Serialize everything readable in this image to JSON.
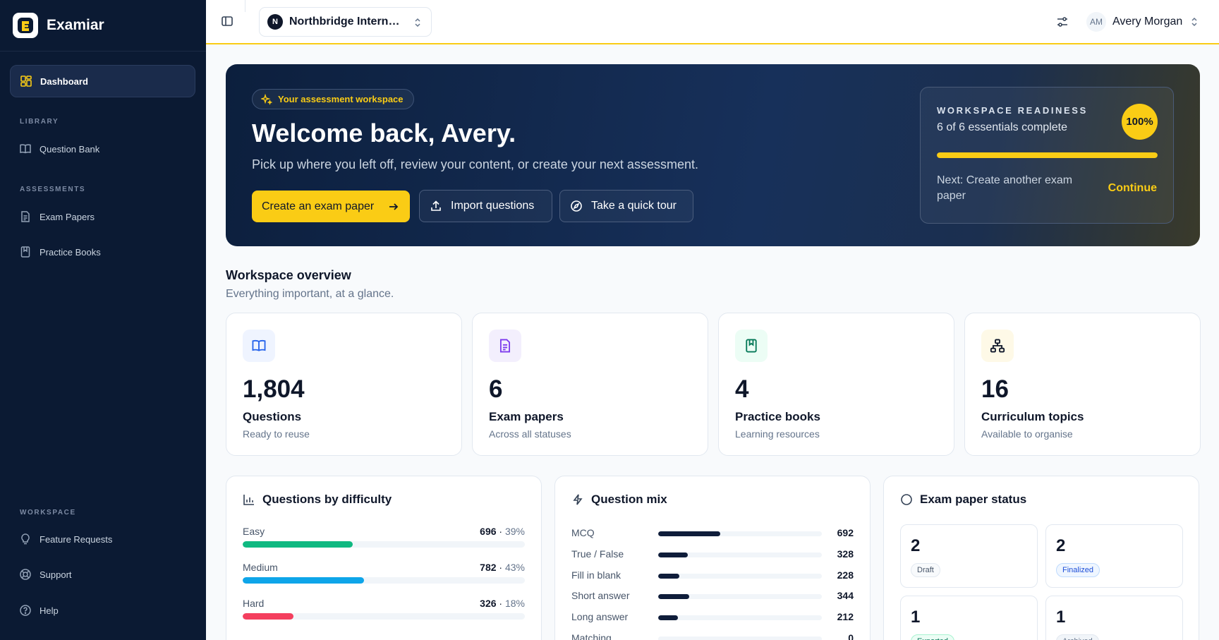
{
  "app": {
    "name": "Examiar"
  },
  "sidebar": {
    "active_item": "Dashboard",
    "sections": {
      "library": "LIBRARY",
      "assessments": "ASSESSMENTS",
      "workspace": "WORKSPACE"
    },
    "items": {
      "question_bank": "Question Bank",
      "exam_papers": "Exam Papers",
      "practice_books": "Practice Books",
      "feature_requests": "Feature Requests",
      "support": "Support",
      "help": "Help"
    }
  },
  "topbar": {
    "org_name": "Northbridge International School",
    "org_initial": "N",
    "user_initials": "AM",
    "user_name": "Avery Morgan"
  },
  "hero": {
    "badge": "Your assessment workspace",
    "title": "Welcome back, Avery.",
    "subtitle": "Pick up where you left off, review your content, or create your next assessment.",
    "primary_button": "Create an exam paper",
    "import_button": "Import questions",
    "tour_button": "Take a quick tour",
    "readiness": {
      "caption": "WORKSPACE READINESS",
      "count_text": "6 of 6 essentials complete",
      "percent_label": "100%",
      "progress": 1.0,
      "next_text": "Next: Create another exam paper",
      "continue_label": "Continue"
    }
  },
  "overview": {
    "title": "Workspace overview",
    "subtitle": "Everything important, at a glance.",
    "stats": [
      {
        "value": "1,804",
        "label": "Questions",
        "sub": "Ready to reuse",
        "icon": "book-open-icon",
        "color": "#2563eb",
        "bg": "#eff4ff"
      },
      {
        "value": "6",
        "label": "Exam papers",
        "sub": "Across all statuses",
        "icon": "document-icon",
        "color": "#7c3aed",
        "bg": "#f3effd"
      },
      {
        "value": "4",
        "label": "Practice books",
        "sub": "Learning resources",
        "icon": "bookmark-book-icon",
        "color": "#047857",
        "bg": "#ecfdf5"
      },
      {
        "value": "16",
        "label": "Curriculum topics",
        "sub": "Available to organise",
        "icon": "hierarchy-icon",
        "color": "#b45309",
        "bg": "#fef9e7"
      }
    ]
  },
  "difficulty": {
    "title": "Questions by difficulty",
    "rows": [
      {
        "name": "Easy",
        "count": "696",
        "percent": "39%",
        "fraction": 0.39,
        "color": "#10b981"
      },
      {
        "name": "Medium",
        "count": "782",
        "percent": "43%",
        "fraction": 0.43,
        "color": "#0ea5e9"
      },
      {
        "name": "Hard",
        "count": "326",
        "percent": "18%",
        "fraction": 0.18,
        "color": "#f43f5e"
      }
    ]
  },
  "mix": {
    "title": "Question mix",
    "max": 1804,
    "rows": [
      {
        "name": "MCQ",
        "value": "692",
        "fraction": 0.38
      },
      {
        "name": "True / False",
        "value": "328",
        "fraction": 0.18
      },
      {
        "name": "Fill in blank",
        "value": "228",
        "fraction": 0.13
      },
      {
        "name": "Short answer",
        "value": "344",
        "fraction": 0.19
      },
      {
        "name": "Long answer",
        "value": "212",
        "fraction": 0.12
      },
      {
        "name": "Matching",
        "value": "0",
        "fraction": 0
      }
    ]
  },
  "status": {
    "title": "Exam paper status",
    "items": [
      {
        "count": "2",
        "label": "Draft",
        "color": "#475569",
        "bg": "#f8fafc",
        "border": "#e2e8f0"
      },
      {
        "count": "2",
        "label": "Finalized",
        "color": "#1d4ed8",
        "bg": "#eff6ff",
        "border": "#bfdbfe"
      },
      {
        "count": "1",
        "label": "Exported",
        "color": "#047857",
        "bg": "#ecfdf5",
        "border": "#a7f3d0"
      },
      {
        "count": "1",
        "label": "Archived",
        "color": "#64748b",
        "bg": "#f1f5f9",
        "border": "#e2e8f0"
      }
    ]
  }
}
